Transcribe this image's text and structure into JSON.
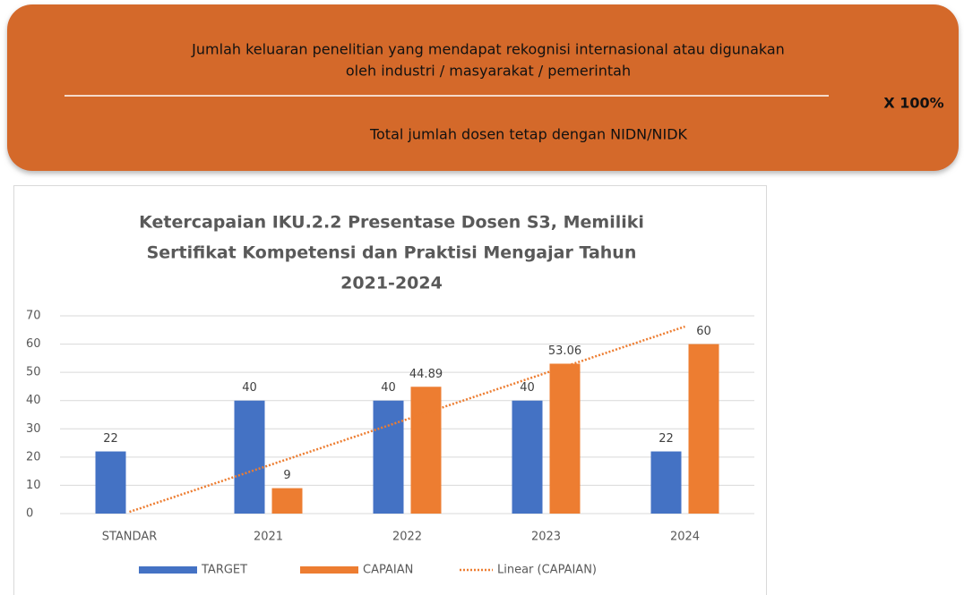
{
  "formula": {
    "numerator": [
      "Jumlah keluaran penelitian yang mendapat rekognisi internasional atau digunakan",
      "oleh industri / masyarakat / pemerintah"
    ],
    "denominator": "Total jumlah dosen tetap dengan NIDN/NIDK",
    "multiplier": "X  100%"
  },
  "chart_data": {
    "type": "bar",
    "title": [
      "Ketercapaian IKU.2.2 Presentase Dosen S3, Memiliki",
      "Sertifikat Kompetensi dan Praktisi Mengajar Tahun",
      "2021-2024"
    ],
    "categories": [
      "STANDAR",
      "2021",
      "2022",
      "2023",
      "2024"
    ],
    "series": [
      {
        "name": "TARGET",
        "color": "#4472c4",
        "values": [
          22,
          40,
          40,
          40,
          22
        ]
      },
      {
        "name": "CAPAIAN",
        "color": "#ed7d31",
        "values": [
          null,
          9,
          44.89,
          53.06,
          60
        ]
      }
    ],
    "trendline": {
      "name": "Linear (CAPAIAN)",
      "color": "#ed7d31",
      "values": [
        0.6,
        17,
        33.4,
        49.8,
        66.2
      ]
    },
    "ylim": [
      0,
      70
    ],
    "yticks": [
      0,
      10,
      20,
      30,
      40,
      50,
      60,
      70
    ],
    "grid": true,
    "legend": "bottom"
  }
}
